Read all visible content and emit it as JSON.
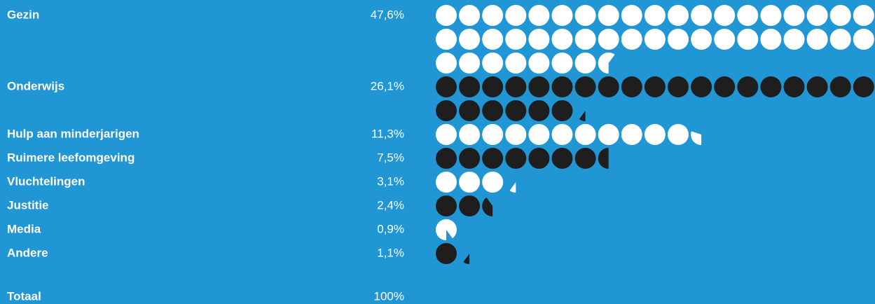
{
  "chart_data": {
    "type": "pictogram",
    "categories": [
      "Gezin",
      "Onderwijs",
      "Hulp aan minderjarigen",
      "Ruimere leefomgeving",
      "Vluchtelingen",
      "Justitie",
      "Media",
      "Andere"
    ],
    "values": [
      47.6,
      26.1,
      11.3,
      7.5,
      3.1,
      2.4,
      0.9,
      1.1
    ],
    "value_labels": [
      "47,6%",
      "26,1%",
      "11,3%",
      "7,5%",
      "3,1%",
      "2,4%",
      "0,9%",
      "1,1%"
    ],
    "colors": [
      "#ffffff",
      "#1e1e1e",
      "#ffffff",
      "#1e1e1e",
      "#ffffff",
      "#1e1e1e",
      "#ffffff",
      "#1e1e1e"
    ],
    "total": {
      "label": "Totaal",
      "value": 100,
      "value_label": "100%"
    }
  }
}
